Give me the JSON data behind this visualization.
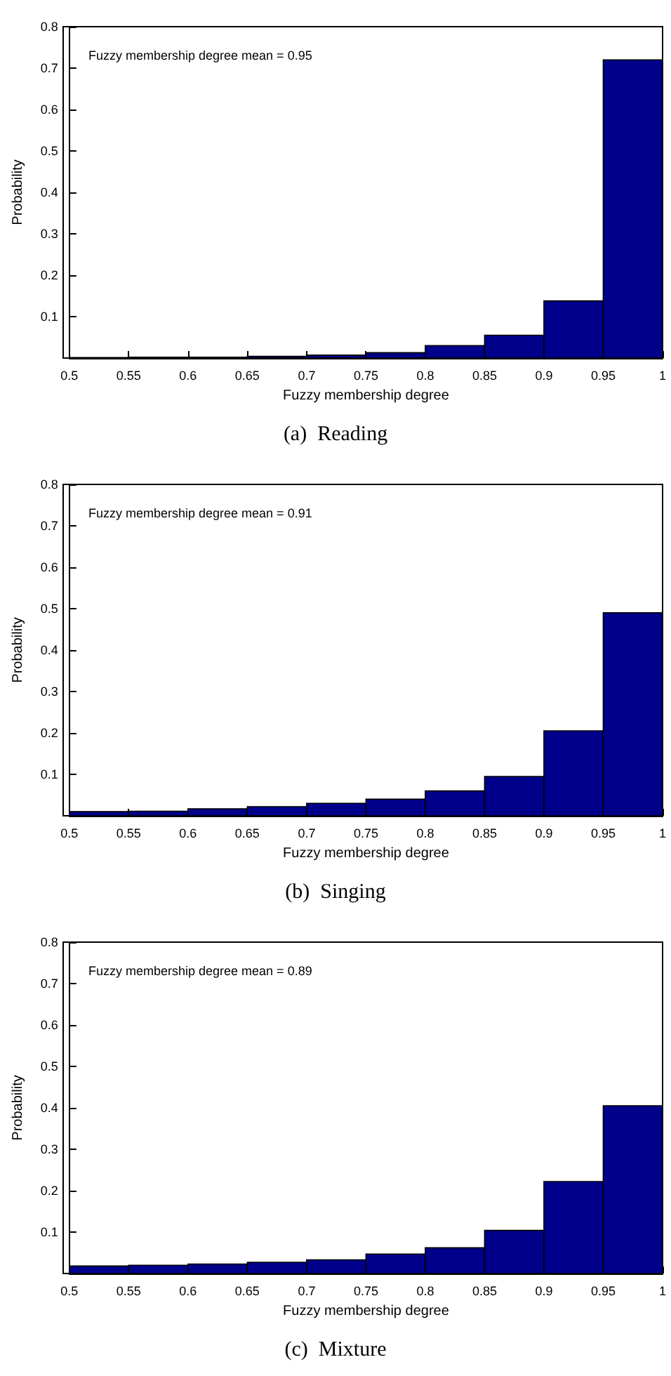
{
  "chart_data": [
    {
      "type": "histogram",
      "title": "(a)  Reading",
      "xlabel": "Fuzzy membership degree",
      "ylabel": "Probability",
      "annotations": [
        "Fuzzy membership degree mean = 0.95"
      ],
      "bins": [
        0.5,
        0.55,
        0.6,
        0.65,
        0.7,
        0.75,
        0.8,
        0.85,
        0.9,
        0.95,
        1
      ],
      "values": [
        0.001,
        0.002,
        0.002,
        0.004,
        0.007,
        0.013,
        0.03,
        0.055,
        0.138,
        0.72
      ],
      "color": "#00008b",
      "xlim": [
        0.5,
        1
      ],
      "xticks": [
        0.5,
        0.55,
        0.6,
        0.65,
        0.7,
        0.75,
        0.8,
        0.85,
        0.9,
        0.95,
        1
      ],
      "ylim": [
        0,
        0.8
      ],
      "yticks": [
        0.1,
        0.2,
        0.3,
        0.4,
        0.5,
        0.6,
        0.7,
        0.8
      ],
      "grid": false
    },
    {
      "type": "histogram",
      "title": "(b)  Singing",
      "xlabel": "Fuzzy membership degree",
      "ylabel": "Probability",
      "annotations": [
        "Fuzzy membership degree mean = 0.91"
      ],
      "bins": [
        0.5,
        0.55,
        0.6,
        0.65,
        0.7,
        0.75,
        0.8,
        0.85,
        0.9,
        0.95,
        1
      ],
      "values": [
        0.01,
        0.011,
        0.017,
        0.022,
        0.03,
        0.04,
        0.06,
        0.095,
        0.205,
        0.49
      ],
      "color": "#00008b",
      "xlim": [
        0.5,
        1
      ],
      "xticks": [
        0.5,
        0.55,
        0.6,
        0.65,
        0.7,
        0.75,
        0.8,
        0.85,
        0.9,
        0.95,
        1
      ],
      "ylim": [
        0,
        0.8
      ],
      "yticks": [
        0.1,
        0.2,
        0.3,
        0.4,
        0.5,
        0.6,
        0.7,
        0.8
      ],
      "grid": false
    },
    {
      "type": "histogram",
      "title": "(c)  Mixture",
      "xlabel": "Fuzzy membership degree",
      "ylabel": "Probability",
      "annotations": [
        "Fuzzy membership degree mean = 0.89"
      ],
      "bins": [
        0.5,
        0.55,
        0.6,
        0.65,
        0.7,
        0.75,
        0.8,
        0.85,
        0.9,
        0.95,
        1
      ],
      "values": [
        0.018,
        0.02,
        0.023,
        0.027,
        0.033,
        0.047,
        0.062,
        0.104,
        0.222,
        0.405
      ],
      "color": "#00008b",
      "xlim": [
        0.5,
        1
      ],
      "xticks": [
        0.5,
        0.55,
        0.6,
        0.65,
        0.7,
        0.75,
        0.8,
        0.85,
        0.9,
        0.95,
        1
      ],
      "ylim": [
        0,
        0.8
      ],
      "yticks": [
        0.1,
        0.2,
        0.3,
        0.4,
        0.5,
        0.6,
        0.7,
        0.8
      ],
      "grid": false
    }
  ]
}
